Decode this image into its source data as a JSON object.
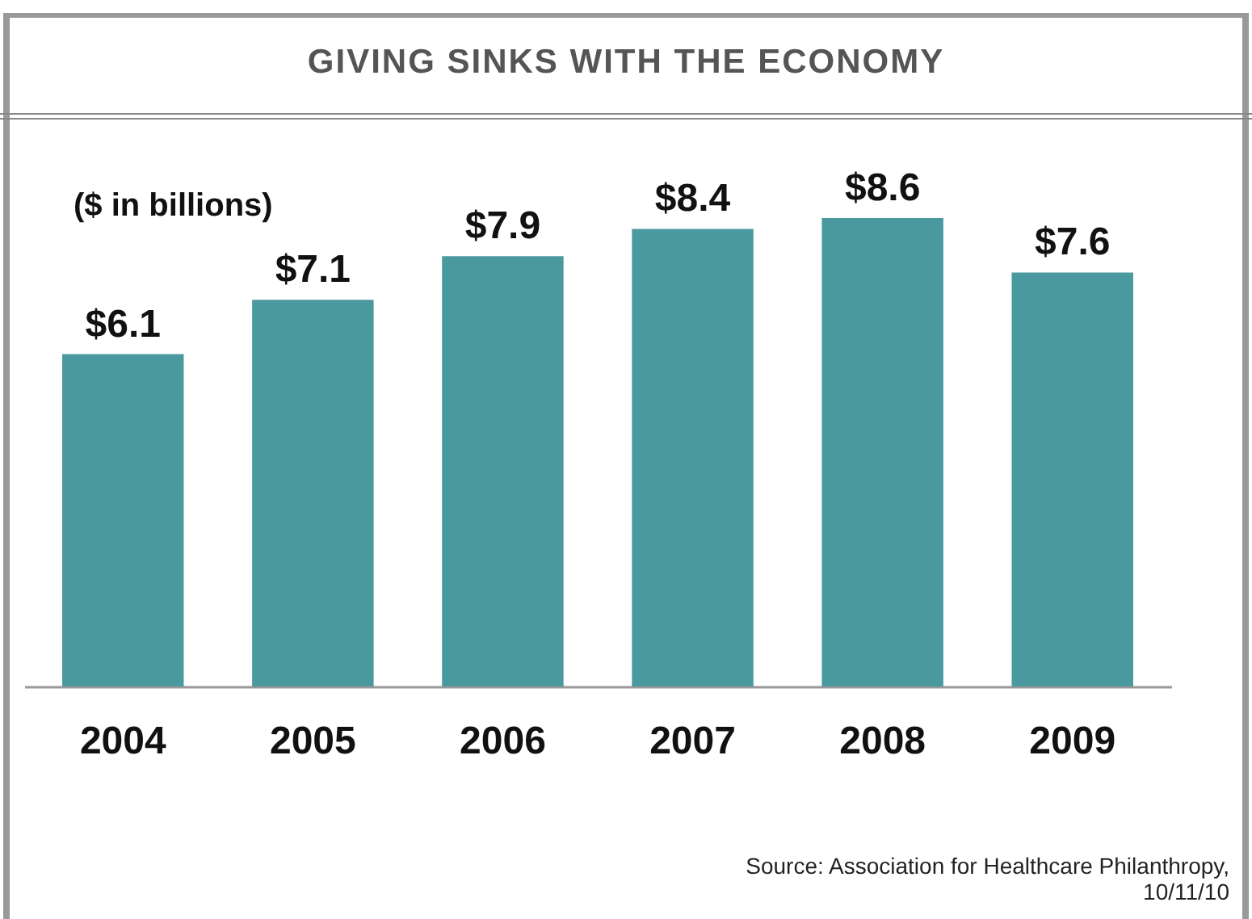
{
  "chart_data": {
    "type": "bar",
    "title": "GIVING SINKS WITH THE ECONOMY",
    "ylabel": "($ in billions)",
    "categories": [
      "2004",
      "2005",
      "2006",
      "2007",
      "2008",
      "2009"
    ],
    "values": [
      6.1,
      7.1,
      7.9,
      8.4,
      8.6,
      7.6
    ],
    "value_labels": [
      "$6.1",
      "$7.1",
      "$7.9",
      "$8.4",
      "$8.6",
      "$7.6"
    ],
    "color": "#4a999f",
    "annotations": [
      "Source:  Association for Healthcare Philanthropy, 10/11/10"
    ]
  }
}
